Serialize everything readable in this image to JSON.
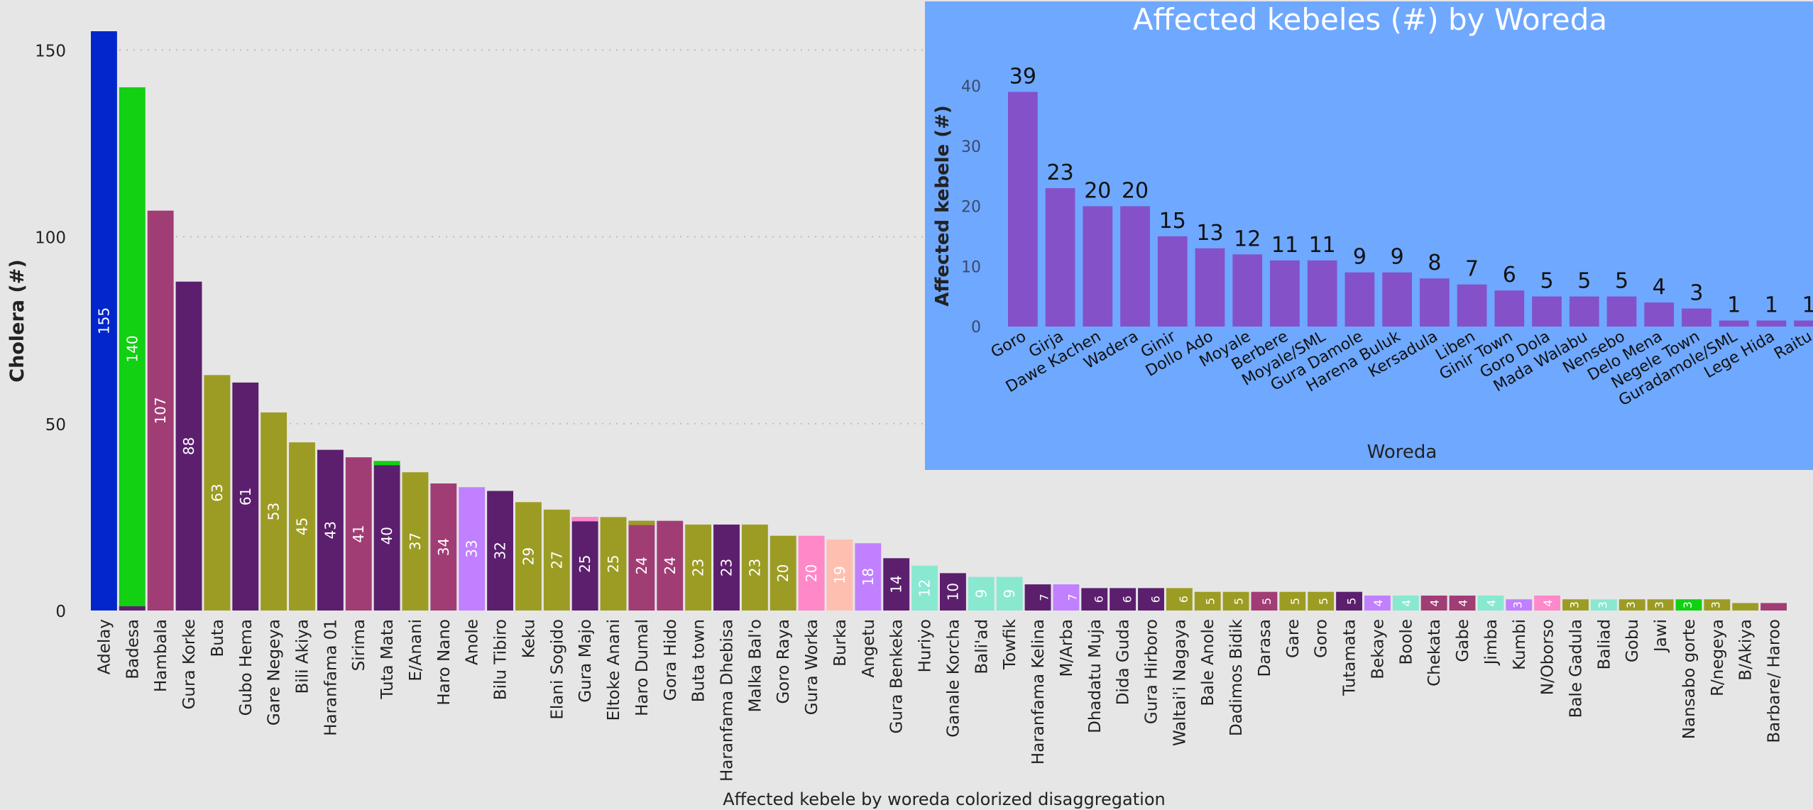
{
  "chart_data": [
    {
      "type": "bar",
      "title": "",
      "xlabel": "Affected kebele by woreda colorized disaggregation",
      "ylabel": "Cholera (#)",
      "ylim": [
        0,
        155
      ],
      "yticks": [
        0,
        50,
        100,
        150
      ],
      "grid": true,
      "categories": [
        "Adelay",
        "Badesa",
        "Hambala",
        "Gura Korke",
        "Buta",
        "Gubo Hema",
        "Gare Negeya",
        "Bili Akiya",
        "Haranfama 01",
        "Sirima",
        "Tuta Mata",
        "E/Anani",
        "Haro Nano",
        "Anole",
        "Bilu Tibiro",
        "Keku",
        "Elani Sogido",
        "Gura Majo",
        "Eltoke Anani",
        "Haro Dumal",
        "Gora Hido",
        "Buta town",
        "Haranfama Dhebisa",
        "Malka Bal'o",
        "Goro Raya",
        "Gura Worka",
        "Burka",
        "Angetu",
        "Gura Benkeka",
        "Huriyo",
        "Ganale Korcha",
        "Bali'ad",
        "Towfik",
        "Haranfama Kelina",
        "M/Arba",
        "Dhadatu Muja",
        "Dida Guda",
        "Gura Hirboro",
        "Waltai'i Nagaya",
        "Bale Anole",
        "Dadimos Bidik",
        "Darasa",
        "Gare",
        "Goro",
        "Tutamata",
        "Bekaye",
        "Boole",
        "Chekata",
        "Gabe",
        "Jimba",
        "Kumbi",
        "N/Oborso",
        "Bale Gadula",
        "Baliad",
        "Gobu",
        "Jawi",
        "Nansabo gorte",
        "R/negeya",
        "B/Akiya",
        "Barbare/ Haroo"
      ],
      "values": [
        155,
        140,
        107,
        88,
        63,
        61,
        53,
        45,
        43,
        41,
        40,
        37,
        34,
        33,
        32,
        29,
        27,
        25,
        25,
        24,
        24,
        23,
        23,
        23,
        20,
        20,
        19,
        18,
        14,
        12,
        10,
        9,
        9,
        7,
        7,
        6,
        6,
        6,
        6,
        5,
        5,
        5,
        5,
        5,
        5,
        4,
        4,
        4,
        4,
        4,
        3,
        4,
        3,
        3,
        3,
        3,
        3,
        3,
        2,
        2
      ],
      "data_labels": [
        "155",
        "140",
        "107",
        "88",
        "63",
        "61",
        "53",
        "45",
        "43",
        "41",
        "40",
        "37",
        "34",
        "33",
        "32",
        "29",
        "27",
        "25",
        "25",
        "24",
        "24",
        "23",
        "23",
        "23",
        "20",
        "20",
        "19",
        "18",
        "14",
        "12",
        "10",
        "9",
        "9",
        "7",
        "7",
        "6",
        "6",
        "6",
        "6",
        "5",
        "5",
        "5",
        "5",
        "5",
        "5",
        "4",
        "4",
        "4",
        "4",
        "4",
        "3",
        "4",
        "3",
        "3",
        "3",
        "3",
        "3",
        "3",
        "",
        ""
      ],
      "colors": [
        "#0026cc",
        "#12d012",
        "#a13d75",
        "#5b1f6e",
        "#9c9c24",
        "#5b1f6e",
        "#9c9c24",
        "#9c9c24",
        "#5b1f6e",
        "#a13d75",
        "#5b1f6e",
        "#9c9c24",
        "#a13d75",
        "#c080ff",
        "#5b1f6e",
        "#9c9c24",
        "#9c9c24",
        "#5b1f6e",
        "#9c9c24",
        "#a13d75",
        "#a13d75",
        "#9c9c24",
        "#5b1f6e",
        "#9c9c24",
        "#9c9c24",
        "#ff88c8",
        "#ffbfb0",
        "#c080ff",
        "#5b1f6e",
        "#88e8d0",
        "#5b1f6e",
        "#88e8d0",
        "#88e8d0",
        "#5b1f6e",
        "#c080ff",
        "#5b1f6e",
        "#5b1f6e",
        "#5b1f6e",
        "#9c9c24",
        "#9c9c24",
        "#9c9c24",
        "#a13d75",
        "#9c9c24",
        "#9c9c24",
        "#5b1f6e",
        "#c080ff",
        "#88e8d0",
        "#a13d75",
        "#a13d75",
        "#88e8d0",
        "#c080ff",
        "#ff88c8",
        "#9c9c24",
        "#88e8d0",
        "#9c9c24",
        "#9c9c24",
        "#12d012",
        "#9c9c24",
        "#9c9c24",
        "#a13d75"
      ],
      "cap_colors": {
        "1": "#5b1f6e",
        "10": "#12d012",
        "17": "#ff88c8",
        "19": "#9c9c24"
      }
    },
    {
      "type": "bar",
      "title": "Affected kebeles (#) by Woreda",
      "xlabel": "Woreda",
      "ylabel": "Affected kebele (#)",
      "ylim": [
        0,
        40
      ],
      "yticks": [
        0,
        10,
        20,
        30,
        40
      ],
      "grid": false,
      "background": "#6fa8ff",
      "bar_color": "#8451c9",
      "categories": [
        "Goro",
        "Girja",
        "Dawe Kachen",
        "Wadera",
        "Ginir",
        "Dollo Ado",
        "Moyale",
        "Berbere",
        "Moyale/SML",
        "Gura Damole",
        "Harena Buluk",
        "Kersadula",
        "Liben",
        "Ginir Town",
        "Goro Dola",
        "Mada Walabu",
        "Nensebo",
        "Delo Mena",
        "Negele Town",
        "Guradamole/SML",
        "Lege Hida",
        "Raitu"
      ],
      "values": [
        39,
        23,
        20,
        20,
        15,
        13,
        12,
        11,
        11,
        9,
        9,
        8,
        7,
        6,
        5,
        5,
        5,
        4,
        3,
        1,
        1,
        1
      ]
    }
  ]
}
